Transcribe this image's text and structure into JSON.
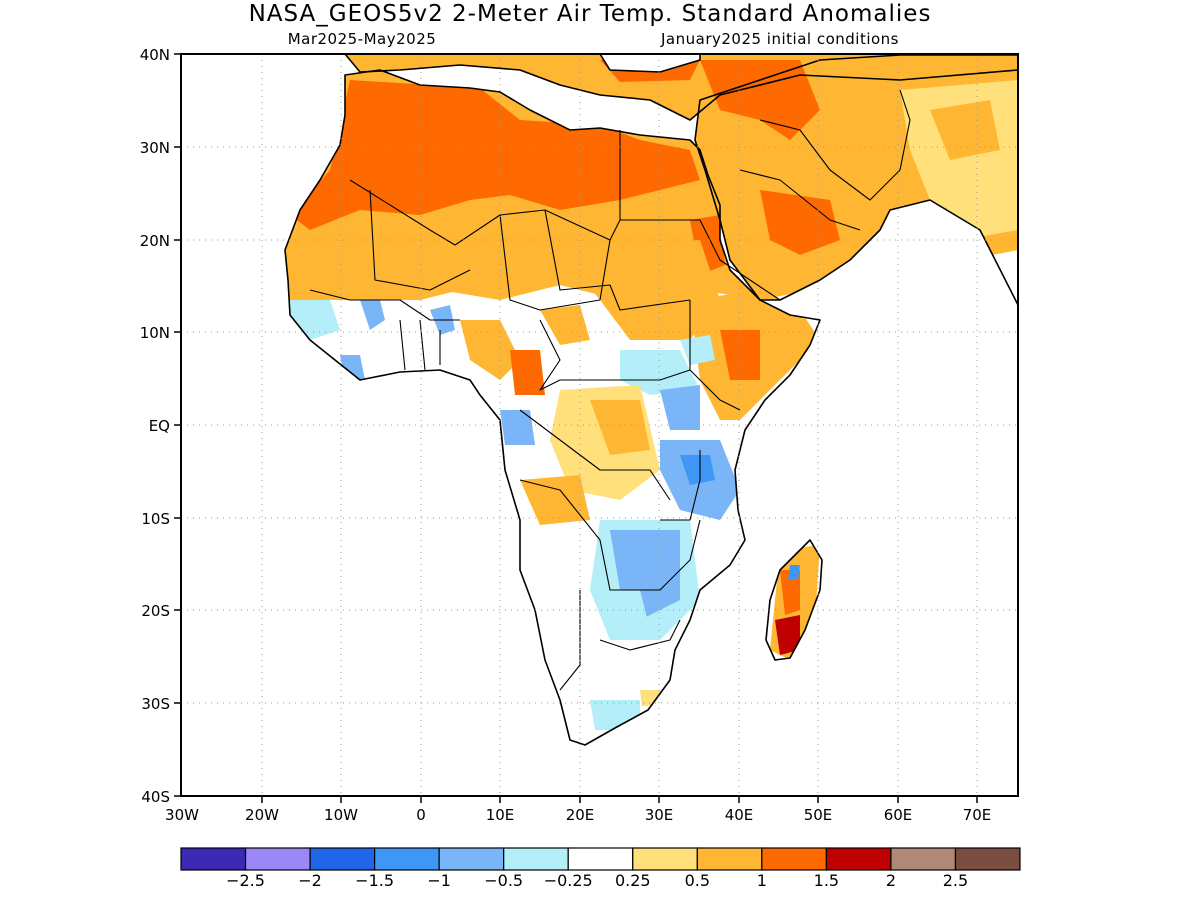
{
  "title": "NASA_GEOS5v2 2-Meter Air Temp. Standard Anomalies",
  "subtitle_left": "Mar2025-May2025",
  "subtitle_right": "January2025 initial conditions",
  "lat_labels": [
    "40N",
    "30N",
    "20N",
    "10N",
    "EQ",
    "10S",
    "20S",
    "30S",
    "40S"
  ],
  "lon_labels": [
    "30W",
    "20W",
    "10W",
    "0",
    "10E",
    "20E",
    "30E",
    "40E",
    "50E",
    "60E",
    "70E"
  ],
  "colorbar": {
    "colors": [
      "#3c29b4",
      "#9b87f5",
      "#2166e8",
      "#3e97f5",
      "#7ab5f7",
      "#b3eef9",
      "#ffffff",
      "#ffe07a",
      "#ffb733",
      "#ff6a00",
      "#c00000",
      "#b08877",
      "#7a4d40"
    ],
    "labels": [
      "-2.5",
      "-2",
      "-1.5",
      "-1",
      "-0.5",
      "-0.25",
      "0.25",
      "0.5",
      "1",
      "1.5",
      "2",
      "2.5"
    ]
  },
  "legend_colors": {
    "strong_warm": "#ff6a00",
    "warm": "#ffb733",
    "slight_warm": "#ffe07a",
    "slight_cool": "#b3eef9",
    "cool": "#7ab5f7",
    "very_warm": "#c00000"
  }
}
